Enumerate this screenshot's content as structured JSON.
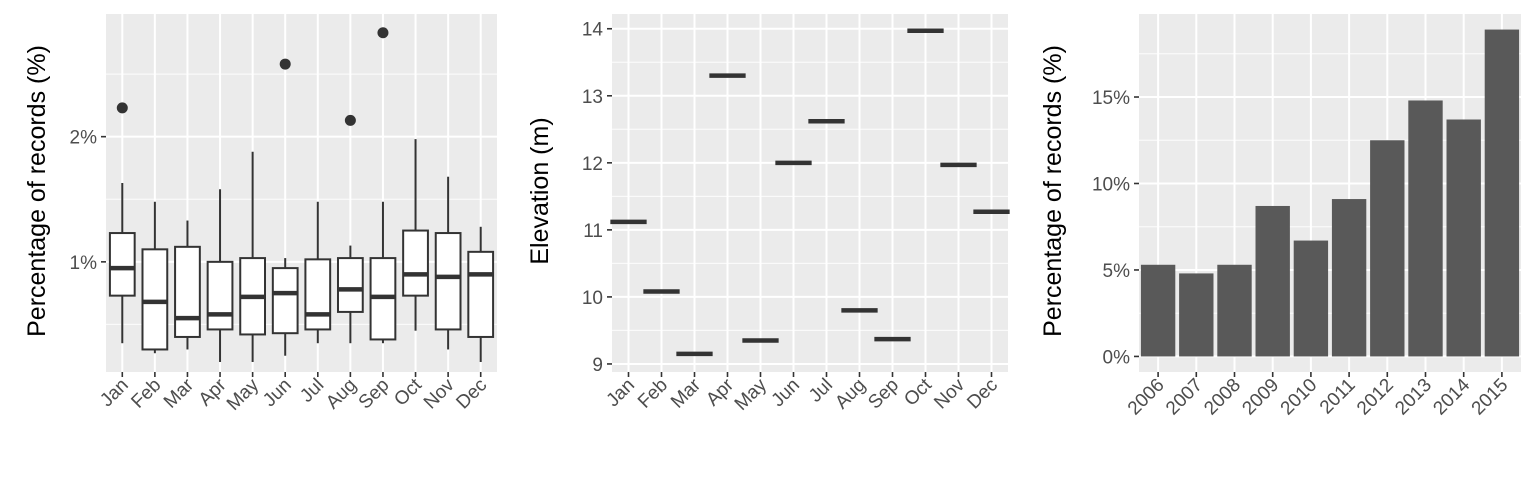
{
  "chart_data": [
    {
      "type": "boxplot",
      "xlabel": "",
      "ylabel": "Percentage of records (%)",
      "categories": [
        "Jan",
        "Feb",
        "Mar",
        "Apr",
        "May",
        "Jun",
        "Jul",
        "Aug",
        "Sep",
        "Oct",
        "Nov",
        "Dec"
      ],
      "ylim": [
        0.12,
        2.98
      ],
      "yticks": [
        1,
        2
      ],
      "ytick_labels": [
        "1%",
        "2%"
      ],
      "grid": true,
      "colors": {
        "box_fill": "#ffffff",
        "box_line": "#333333",
        "point": "#333333"
      },
      "boxes": [
        {
          "min": 0.35,
          "q1": 0.73,
          "median": 0.95,
          "q3": 1.23,
          "max": 1.63,
          "outliers": [
            2.23
          ]
        },
        {
          "min": 0.27,
          "q1": 0.3,
          "median": 0.68,
          "q3": 1.1,
          "max": 1.48,
          "outliers": []
        },
        {
          "min": 0.3,
          "q1": 0.4,
          "median": 0.55,
          "q3": 1.12,
          "max": 1.33,
          "outliers": []
        },
        {
          "min": 0.2,
          "q1": 0.46,
          "median": 0.58,
          "q3": 1.0,
          "max": 1.58,
          "outliers": []
        },
        {
          "min": 0.2,
          "q1": 0.42,
          "median": 0.72,
          "q3": 1.03,
          "max": 1.88,
          "outliers": []
        },
        {
          "min": 0.25,
          "q1": 0.43,
          "median": 0.75,
          "q3": 0.95,
          "max": 1.03,
          "outliers": [
            2.58
          ]
        },
        {
          "min": 0.35,
          "q1": 0.46,
          "median": 0.58,
          "q3": 1.02,
          "max": 1.48,
          "outliers": []
        },
        {
          "min": 0.35,
          "q1": 0.6,
          "median": 0.78,
          "q3": 1.03,
          "max": 1.13,
          "outliers": [
            2.13
          ]
        },
        {
          "min": 0.35,
          "q1": 0.38,
          "median": 0.72,
          "q3": 1.03,
          "max": 1.48,
          "outliers": [
            2.83
          ]
        },
        {
          "min": 0.45,
          "q1": 0.73,
          "median": 0.9,
          "q3": 1.25,
          "max": 1.98,
          "outliers": []
        },
        {
          "min": 0.3,
          "q1": 0.46,
          "median": 0.88,
          "q3": 1.23,
          "max": 1.68,
          "outliers": []
        },
        {
          "min": 0.2,
          "q1": 0.4,
          "median": 0.9,
          "q3": 1.08,
          "max": 1.28,
          "outliers": []
        }
      ]
    },
    {
      "type": "point",
      "xlabel": "",
      "ylabel": "Elevation (m)",
      "categories": [
        "Jan",
        "Feb",
        "Mar",
        "Apr",
        "May",
        "Jun",
        "Jul",
        "Aug",
        "Sep",
        "Oct",
        "Nov",
        "Dec"
      ],
      "values": [
        11.12,
        10.08,
        9.15,
        13.3,
        9.35,
        12.0,
        12.62,
        9.8,
        9.37,
        13.97,
        11.97,
        11.27
      ],
      "ylim": [
        8.88,
        14.22
      ],
      "yticks": [
        9,
        10,
        11,
        12,
        13,
        14
      ],
      "ytick_labels": [
        "9",
        "10",
        "11",
        "12",
        "13",
        "14"
      ],
      "grid": true,
      "colors": {
        "mark": "#333333"
      }
    },
    {
      "type": "bar",
      "xlabel": "",
      "ylabel": "Percentage of records (%)",
      "categories": [
        "2006",
        "2007",
        "2008",
        "2009",
        "2010",
        "2011",
        "2012",
        "2013",
        "2014",
        "2015"
      ],
      "values": [
        5.3,
        4.8,
        5.3,
        8.7,
        6.7,
        9.1,
        12.5,
        14.8,
        13.7,
        18.9
      ],
      "ylim": [
        -0.9,
        19.8
      ],
      "yticks": [
        0,
        5,
        10,
        15
      ],
      "ytick_labels": [
        "0%",
        "5%",
        "10%",
        "15%"
      ],
      "grid": true,
      "colors": {
        "bar": "#595959"
      }
    }
  ]
}
